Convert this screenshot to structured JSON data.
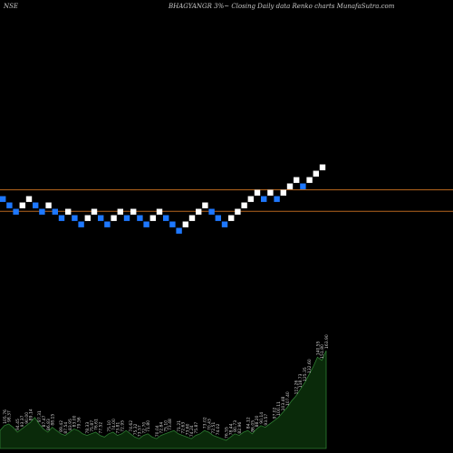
{
  "header": {
    "exchange": "NSE",
    "title": "BHAGYANGR 3%~  Closing Daily data  Renko  charts MunafaSutra.com"
  },
  "chart_data": {
    "type": "renko",
    "ticker": "BHAGYANGR",
    "box_size_label": "3%",
    "price_basis": "Closing",
    "frequency": "Daily data",
    "colors": {
      "up_brick": "#ffffff",
      "down_brick": "#1e78ff",
      "reference_line": "#b5651d",
      "volume_fill": "#0a2a0a",
      "volume_line": "#2e7d32",
      "label": "#cfcfcf"
    },
    "bricks": [
      {
        "d": "down",
        "lv": 1
      },
      {
        "d": "down",
        "lv": 0
      },
      {
        "d": "down",
        "lv": -1
      },
      {
        "d": "up",
        "lv": 0
      },
      {
        "d": "up",
        "lv": 1
      },
      {
        "d": "down",
        "lv": 0
      },
      {
        "d": "down",
        "lv": -1
      },
      {
        "d": "up",
        "lv": 0
      },
      {
        "d": "down",
        "lv": -1
      },
      {
        "d": "down",
        "lv": -2
      },
      {
        "d": "up",
        "lv": -1
      },
      {
        "d": "down",
        "lv": -2
      },
      {
        "d": "down",
        "lv": -3
      },
      {
        "d": "up",
        "lv": -2
      },
      {
        "d": "up",
        "lv": -1
      },
      {
        "d": "down",
        "lv": -2
      },
      {
        "d": "down",
        "lv": -3
      },
      {
        "d": "up",
        "lv": -2
      },
      {
        "d": "up",
        "lv": -1
      },
      {
        "d": "down",
        "lv": -2
      },
      {
        "d": "up",
        "lv": -1
      },
      {
        "d": "down",
        "lv": -2
      },
      {
        "d": "down",
        "lv": -3
      },
      {
        "d": "up",
        "lv": -2
      },
      {
        "d": "up",
        "lv": -1
      },
      {
        "d": "down",
        "lv": -2
      },
      {
        "d": "down",
        "lv": -3
      },
      {
        "d": "down",
        "lv": -4
      },
      {
        "d": "up",
        "lv": -3
      },
      {
        "d": "up",
        "lv": -2
      },
      {
        "d": "up",
        "lv": -1
      },
      {
        "d": "up",
        "lv": 0
      },
      {
        "d": "down",
        "lv": -1
      },
      {
        "d": "down",
        "lv": -2
      },
      {
        "d": "down",
        "lv": -3
      },
      {
        "d": "up",
        "lv": -2
      },
      {
        "d": "up",
        "lv": -1
      },
      {
        "d": "up",
        "lv": 0
      },
      {
        "d": "up",
        "lv": 1
      },
      {
        "d": "up",
        "lv": 2
      },
      {
        "d": "down",
        "lv": 1
      },
      {
        "d": "up",
        "lv": 2
      },
      {
        "d": "down",
        "lv": 1
      },
      {
        "d": "up",
        "lv": 2
      },
      {
        "d": "up",
        "lv": 3
      },
      {
        "d": "up",
        "lv": 4
      },
      {
        "d": "down",
        "lv": 3
      },
      {
        "d": "up",
        "lv": 4
      },
      {
        "d": "up",
        "lv": 5
      },
      {
        "d": "up",
        "lv": 6
      }
    ],
    "reference_lines_levels": [
      2.5,
      -0.9
    ],
    "volume_profile": [
      22,
      28,
      30,
      26,
      20,
      24,
      28,
      32,
      38,
      30,
      24,
      20,
      26,
      22,
      18,
      16,
      20,
      24,
      22,
      18,
      16,
      18,
      20,
      16,
      14,
      18,
      20,
      16,
      18,
      22,
      18,
      14,
      12,
      16,
      18,
      14,
      12,
      16,
      18,
      20,
      22,
      18,
      16,
      14,
      12,
      16,
      18,
      22,
      20,
      16,
      14,
      12,
      10,
      14,
      18,
      16,
      20,
      22,
      18,
      24,
      28,
      26,
      30,
      34,
      38,
      44,
      50,
      58,
      64,
      72,
      80,
      90,
      100,
      112,
      108,
      120
    ],
    "price_labels": [
      {
        "i": 1,
        "t": "105.76"
      },
      {
        "i": 2,
        "t": "98.37"
      },
      {
        "i": 3,
        "t": "94.45"
      },
      {
        "i": 4,
        "t": "93.37"
      },
      {
        "i": 5,
        "t": "90.00"
      },
      {
        "i": 6,
        "t": "89.14"
      },
      {
        "i": 7,
        "t": "87.31"
      },
      {
        "i": 8,
        "t": "87.47"
      },
      {
        "i": 9,
        "t": "86.83"
      },
      {
        "i": 10,
        "t": "88.15"
      },
      {
        "i": 11,
        "t": "89.42"
      },
      {
        "i": 12,
        "t": "87.54"
      },
      {
        "i": 13,
        "t": "83.95"
      },
      {
        "i": 14,
        "t": "83.00"
      },
      {
        "i": 15,
        "t": "79.56"
      },
      {
        "i": 16,
        "t": "78.33"
      },
      {
        "i": 17,
        "t": "75.87"
      },
      {
        "i": 18,
        "t": "76.61"
      },
      {
        "i": 19,
        "t": "77.52"
      },
      {
        "i": 20,
        "t": "75.10"
      },
      {
        "i": 21,
        "t": "74.00"
      },
      {
        "i": 22,
        "t": "73.81"
      },
      {
        "i": 23,
        "t": "72.95"
      },
      {
        "i": 24,
        "t": "74.62"
      },
      {
        "i": 25,
        "t": "75.32"
      },
      {
        "i": 26,
        "t": "73.57"
      },
      {
        "i": 27,
        "t": "72.70"
      },
      {
        "i": 28,
        "t": "71.80"
      },
      {
        "i": 29,
        "t": "70.04"
      },
      {
        "i": 30,
        "t": "72.84"
      },
      {
        "i": 31,
        "t": "75.10"
      },
      {
        "i": 32,
        "t": "73.48"
      },
      {
        "i": 33,
        "t": "71.21"
      },
      {
        "i": 34,
        "t": "72.63"
      },
      {
        "i": 35,
        "t": "73.60"
      },
      {
        "i": 36,
        "t": "74.24"
      },
      {
        "i": 37,
        "t": "75.87"
      },
      {
        "i": 38,
        "t": "73.02"
      },
      {
        "i": 39,
        "t": "70.43"
      },
      {
        "i": 40,
        "t": "72.51"
      },
      {
        "i": 41,
        "t": "74.02"
      },
      {
        "i": 42,
        "t": "76.55"
      },
      {
        "i": 43,
        "t": "78.44"
      },
      {
        "i": 44,
        "t": "80.73"
      },
      {
        "i": 45,
        "t": "82.96"
      },
      {
        "i": 46,
        "t": "84.12"
      },
      {
        "i": 47,
        "t": "86.05"
      },
      {
        "i": 48,
        "t": "88.20"
      },
      {
        "i": 49,
        "t": "90.14"
      },
      {
        "i": 50,
        "t": "93.57"
      },
      {
        "i": 51,
        "t": "97.02"
      },
      {
        "i": 52,
        "t": "100.11"
      },
      {
        "i": 53,
        "t": "103.48"
      },
      {
        "i": 54,
        "t": "107.40"
      },
      {
        "i": 55,
        "t": "112.26"
      },
      {
        "i": 56,
        "t": "118.73"
      },
      {
        "i": 57,
        "t": "125.35"
      },
      {
        "i": 58,
        "t": "132.60"
      },
      {
        "i": 59,
        "t": "140.55"
      },
      {
        "i": 60,
        "t": "151.80"
      },
      {
        "i": 61,
        "t": "163.90"
      }
    ]
  }
}
